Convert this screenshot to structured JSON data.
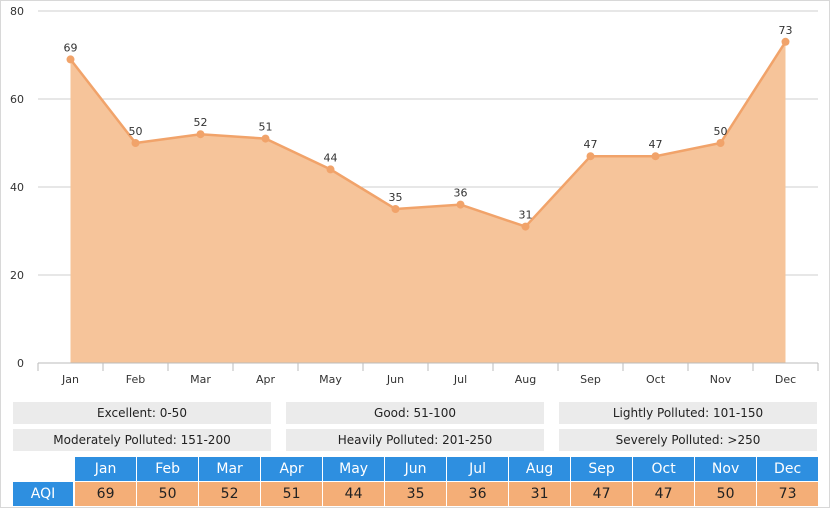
{
  "colors": {
    "area_fill": "#f6c49a",
    "line": "#f1a36a",
    "grid": "#cfcfcf",
    "header_blue": "#2e8fe0",
    "value_orange": "#f4ae77",
    "legend_bg": "#ebebeb"
  },
  "chart_data": {
    "type": "area",
    "categories": [
      "Jan",
      "Feb",
      "Mar",
      "Apr",
      "May",
      "Jun",
      "Jul",
      "Aug",
      "Sep",
      "Oct",
      "Nov",
      "Dec"
    ],
    "values": [
      69,
      50,
      52,
      51,
      44,
      35,
      36,
      31,
      47,
      47,
      50,
      73
    ],
    "ylim": [
      0,
      80
    ],
    "yticks": [
      0,
      20,
      40,
      60,
      80
    ],
    "grid": true,
    "data_labels": true
  },
  "legend": {
    "row1": [
      "Excellent: 0-50",
      "Good: 51-100",
      "Lightly Polluted: 101-150"
    ],
    "row2": [
      "Moderately Polluted: 151-200",
      "Heavily Polluted: 201-250",
      "Severely Polluted: >250"
    ]
  },
  "table": {
    "row_label": "AQI",
    "months": [
      "Jan",
      "Feb",
      "Mar",
      "Apr",
      "May",
      "Jun",
      "Jul",
      "Aug",
      "Sep",
      "Oct",
      "Nov",
      "Dec"
    ],
    "values": [
      "69",
      "50",
      "52",
      "51",
      "44",
      "35",
      "36",
      "31",
      "47",
      "47",
      "50",
      "73"
    ]
  }
}
